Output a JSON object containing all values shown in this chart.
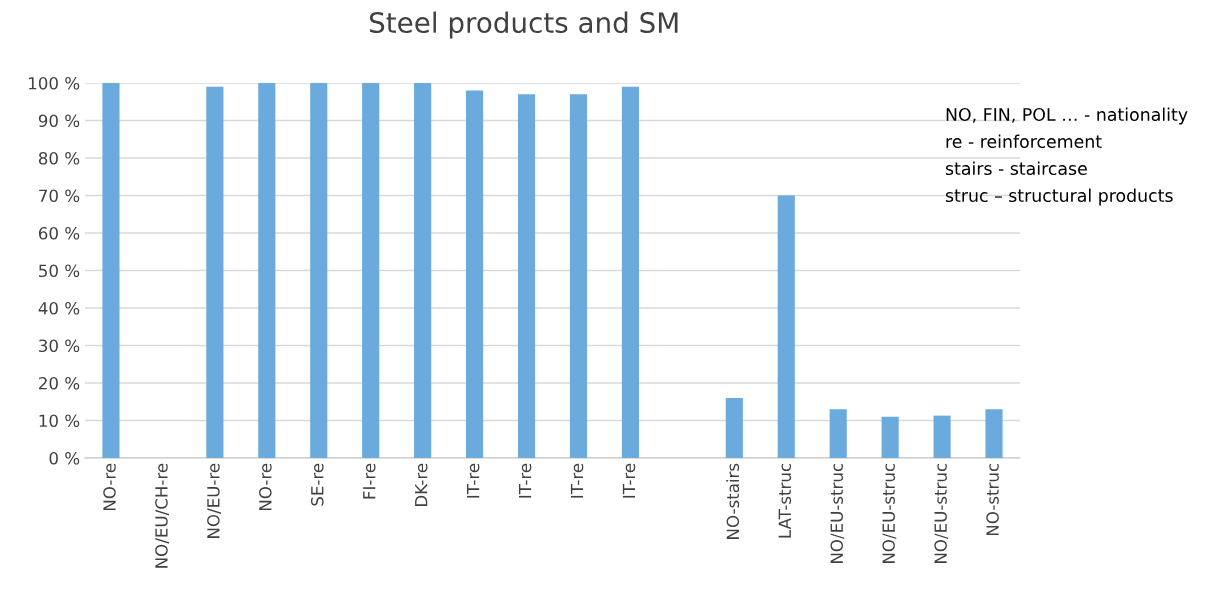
{
  "chart_data": {
    "type": "bar",
    "title": "Steel products and SM",
    "categories": [
      "NO-re",
      "NO/EU/CH-re",
      "NO/EU-re",
      "NO-re",
      "SE-re",
      "FI-re",
      "DK-re",
      "IT-re",
      "IT-re",
      "IT-re",
      "IT-re",
      null,
      "NO-stairs",
      "LAT-struc",
      "NO/EU-struc",
      "NO/EU-struc",
      "NO/EU-struc",
      "NO-struc"
    ],
    "values": [
      100,
      null,
      99,
      100,
      100,
      100,
      100,
      98,
      97,
      97,
      99,
      null,
      16,
      70,
      13,
      11,
      11.3,
      13
    ],
    "color": "#6aaadc",
    "ylim": [
      0,
      100
    ],
    "yticks": [
      {
        "value": 0,
        "label": "0 %"
      },
      {
        "value": 10,
        "label": "10 %"
      },
      {
        "value": 20,
        "label": "20 %"
      },
      {
        "value": 30,
        "label": "30 %"
      },
      {
        "value": 40,
        "label": "40 %"
      },
      {
        "value": 50,
        "label": "50 %"
      },
      {
        "value": 60,
        "label": "60 %"
      },
      {
        "value": 70,
        "label": "70 %"
      },
      {
        "value": 80,
        "label": "80 %"
      },
      {
        "value": 90,
        "label": "90 %"
      },
      {
        "value": 100,
        "label": "100 %"
      }
    ],
    "grid": "y",
    "annotations": [
      "NO, FIN, POL … - nationality",
      "re - reinforcement",
      "stairs - staircase",
      "struc – structural products"
    ]
  }
}
